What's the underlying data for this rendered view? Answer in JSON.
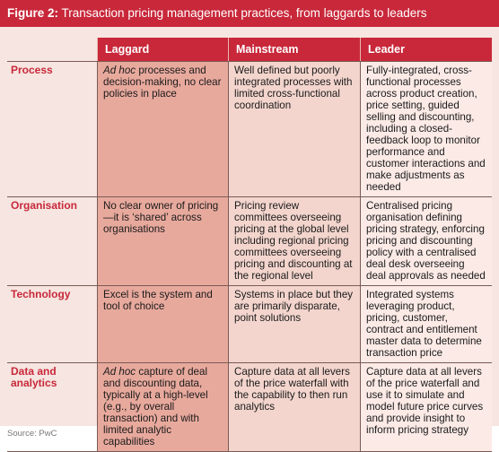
{
  "figure": {
    "label": "Figure 2:",
    "title": "Transaction pricing management practices, from laggards to leaders",
    "source": "Source: PwC"
  },
  "columns": [
    "Laggard",
    "Mainstream",
    "Leader"
  ],
  "rows": [
    {
      "header": "Process",
      "laggard_em": "Ad hoc",
      "laggard_rest": " processes and decision-making, no clear policies in place",
      "mainstream": "Well defined but poorly integrated processes with limited cross-functional coordination",
      "leader": "Fully-integrated, cross-functional processes across product creation, price setting, guided selling and discounting, including a closed-feedback loop to monitor performance and customer interactions and make adjustments as needed"
    },
    {
      "header": "Organisation",
      "laggard_em": "",
      "laggard_rest": "No clear owner of pricing—it is ‘shared’ across organisations",
      "mainstream": "Pricing review committees overseeing pricing at the global level including regional pricing committees overseeing pricing and discounting at the regional level",
      "leader": "Centralised pricing organisation defining pricing strategy, enforcing pricing and discounting policy with a centralised deal desk overseeing deal approvals as needed"
    },
    {
      "header": "Technology",
      "laggard_em": "",
      "laggard_rest": "Excel is the system and tool of choice",
      "mainstream": "Systems in place but they are primarily disparate, point solutions",
      "leader": "Integrated systems leveraging product, pricing, customer, contract and entitlement master data to determine transaction price"
    },
    {
      "header": "Data and analytics",
      "laggard_em": "Ad hoc",
      "laggard_rest": " capture of deal and discounting data, typically at a high-level (e.g., by overall transaction) and with limited analytic capabilities",
      "mainstream": "Capture data at all levers of the price waterfall with the capability to then run analytics",
      "leader": "Capture data at all levers of the price waterfall and use it to simulate and model future price curves and provide insight to inform pricing strategy"
    }
  ]
}
